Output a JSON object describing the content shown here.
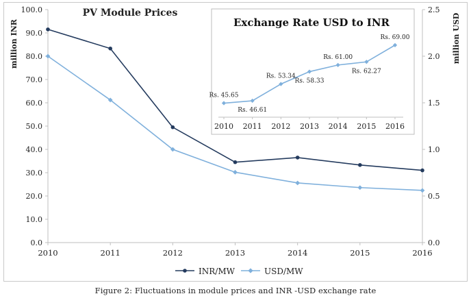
{
  "main_chart": {
    "title": "PV Module Prices",
    "ylabel_left": "million INR",
    "ylabel_right": "million USD",
    "categories": [
      "2010",
      "2011",
      "2012",
      "2013",
      "2014",
      "2015",
      "2016"
    ],
    "y_left_ticks": [
      "0.0",
      "10.0",
      "20.0",
      "30.0",
      "40.0",
      "50.0",
      "60.0",
      "70.0",
      "80.0",
      "90.0",
      "100.0"
    ],
    "y_right_ticks": [
      "0.0",
      "0.5",
      "1.0",
      "1.5",
      "2.0",
      "2.5"
    ],
    "legend": [
      "INR/MW",
      "USD/MW"
    ]
  },
  "inset_chart": {
    "title": "Exchange Rate USD to INR",
    "categories": [
      "2010",
      "2011",
      "2012",
      "2013",
      "2014",
      "2015",
      "2016"
    ],
    "data_labels": [
      "Rs. 45.65",
      "Rs. 46.61",
      "Rs. 53.34",
      "Rs. 58.33",
      "Rs. 61.00",
      "Rs. 62.27",
      "Rs. 69.00"
    ]
  },
  "caption": "Figure 2: Fluctuations  in module prices and INR -USD  exchange  rate",
  "colors": {
    "inr": "#243b5e",
    "usd": "#7fb0dc",
    "axis": "#bfbfbf",
    "text": "#222222"
  },
  "chart_data": [
    {
      "type": "line",
      "title": "PV Module Prices",
      "categories": [
        "2010",
        "2011",
        "2012",
        "2013",
        "2014",
        "2015",
        "2016"
      ],
      "series": [
        {
          "name": "INR/MW",
          "axis": "left",
          "values": [
            91.5,
            83.3,
            49.5,
            34.5,
            36.5,
            33.3,
            31.0
          ]
        },
        {
          "name": "USD/MW",
          "axis": "right",
          "values": [
            2.0,
            1.53,
            1.0,
            0.755,
            0.64,
            0.59,
            0.56
          ]
        }
      ],
      "ylabel": "million INR",
      "ylim": [
        0,
        100
      ],
      "y2label": "million USD",
      "y2lim": [
        0,
        2.5
      ],
      "legend": "bottom"
    },
    {
      "type": "line",
      "title": "Exchange Rate USD to INR",
      "categories": [
        "2010",
        "2011",
        "2012",
        "2013",
        "2014",
        "2015",
        "2016"
      ],
      "series": [
        {
          "values": [
            45.65,
            46.61,
            53.34,
            58.33,
            61.0,
            62.27,
            69.0
          ]
        }
      ],
      "ylim": [
        40,
        72
      ]
    }
  ]
}
